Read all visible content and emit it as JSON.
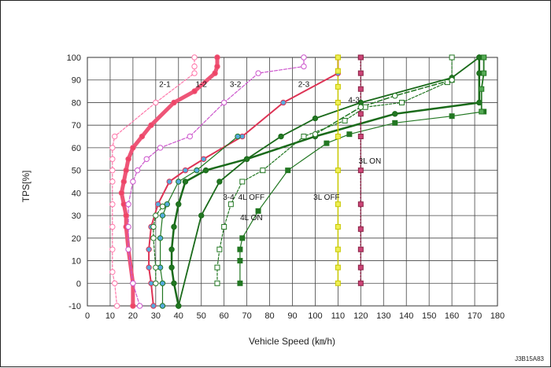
{
  "chart_data": {
    "type": "line",
    "xlabel": "Vehicle Speed (㎞/h)",
    "ylabel": "TPS[%]",
    "xlim": [
      0,
      180
    ],
    "ylim": [
      -10,
      100
    ],
    "xticks": [
      "0",
      "10",
      "20",
      "30",
      "40",
      "50",
      "60",
      "70",
      "80",
      "90",
      "100",
      "110",
      "120",
      "130",
      "140",
      "150",
      "160",
      "170",
      "180"
    ],
    "yticks": [
      "-10",
      "0",
      "10",
      "20",
      "30",
      "40",
      "50",
      "60",
      "70",
      "80",
      "90",
      "100"
    ],
    "grid": true,
    "code_label": "J3B15A83",
    "annotations": [
      {
        "text": "2-1",
        "x": 34,
        "y": 87
      },
      {
        "text": "1-2",
        "x": 50,
        "y": 87
      },
      {
        "text": "3-2",
        "x": 65,
        "y": 87
      },
      {
        "text": "2-3",
        "x": 95,
        "y": 87
      },
      {
        "text": "4-3",
        "x": 117,
        "y": 80
      },
      {
        "text": "3-4",
        "x": 62,
        "y": 37
      },
      {
        "text": "4L OFF",
        "x": 72,
        "y": 37
      },
      {
        "text": "4L ON",
        "x": 72,
        "y": 28
      },
      {
        "text": "3L OFF",
        "x": 105,
        "y": 37
      },
      {
        "text": "3L ON",
        "x": 124,
        "y": 53
      }
    ],
    "series": [
      {
        "color": "#ff77aa",
        "marker_fill": "#ffffff",
        "width": 1.2,
        "dash": "3,2",
        "marker": "circle",
        "x": [
          13,
          12,
          11,
          11,
          11,
          11,
          11,
          11,
          11,
          11,
          12,
          30,
          47,
          47,
          47
        ],
        "y": [
          -10,
          0,
          5,
          15,
          25,
          35,
          45,
          50,
          55,
          60,
          65,
          80,
          93,
          96,
          100
        ]
      },
      {
        "color": "#ee5577",
        "marker_fill": "#ee4466",
        "width": 5,
        "dash": "",
        "marker": "circle",
        "x": [
          20,
          20,
          18,
          17,
          17,
          16,
          15,
          16,
          17,
          18,
          20,
          24,
          28,
          38,
          47,
          56,
          57,
          57
        ],
        "y": [
          -10,
          0,
          15,
          25,
          30,
          35,
          40,
          45,
          50,
          55,
          60,
          65,
          70,
          80,
          85,
          93,
          96,
          100
        ]
      },
      {
        "color": "#cc55cc",
        "marker_fill": "#ffffff",
        "width": 1.2,
        "dash": "4,2",
        "marker": "circle",
        "x": [
          23,
          20,
          18,
          18,
          18,
          20,
          22,
          26,
          32,
          45,
          60,
          75,
          95,
          95
        ],
        "y": [
          -10,
          0,
          15,
          25,
          35,
          45,
          50,
          55,
          60,
          65,
          80,
          93,
          96,
          100
        ]
      },
      {
        "color": "#dd3355",
        "marker_fill": "#55aadd",
        "width": 2,
        "dash": "",
        "marker": "circle",
        "x": [
          29,
          28,
          27,
          27,
          28,
          31,
          36,
          43,
          51,
          68,
          86,
          110,
          110
        ],
        "y": [
          -10,
          0,
          7,
          15,
          25,
          35,
          45,
          50,
          55,
          65,
          80,
          93,
          100
        ]
      },
      {
        "color": "#227722",
        "marker_fill": "#55aadd",
        "width": 1.2,
        "dash": "",
        "marker": "circle",
        "x": [
          33,
          33,
          32,
          32,
          33,
          35,
          40,
          48,
          66
        ],
        "y": [
          -10,
          0,
          7,
          20,
          30,
          35,
          45,
          50,
          65
        ]
      },
      {
        "color": "#227722",
        "marker_fill": "#ffffff",
        "width": 1.2,
        "dash": "3,2",
        "marker": "circle",
        "x": [
          30,
          30,
          29,
          29,
          30,
          33
        ],
        "y": [
          0,
          7,
          20,
          25,
          30,
          34
        ]
      },
      {
        "color": "#1a6a1a",
        "marker_fill": "#227722",
        "width": 2.5,
        "dash": "",
        "marker": "circle",
        "x": [
          40,
          38,
          37,
          37,
          38,
          40,
          43,
          52,
          70,
          100,
          135,
          172,
          172,
          172
        ],
        "y": [
          -10,
          0,
          7,
          15,
          25,
          35,
          45,
          50,
          55,
          65,
          75,
          80,
          93,
          100
        ]
      },
      {
        "color": "#1a6a1a",
        "marker_fill": "#227722",
        "width": 1.8,
        "dash": "",
        "marker": "circle",
        "x": [
          40,
          50,
          58,
          70,
          85,
          100,
          120,
          160,
          172
        ],
        "y": [
          -10,
          30,
          45,
          55,
          65,
          73,
          80,
          91,
          100
        ]
      },
      {
        "color": "#227722",
        "marker_fill": "#ffffff",
        "width": 1.2,
        "dash": "3,2",
        "marker": "square",
        "x": [
          57,
          57,
          58,
          60,
          63,
          68,
          77,
          95,
          113,
          122,
          138,
          158,
          160,
          160
        ],
        "y": [
          0,
          7,
          15,
          25,
          35,
          45,
          50,
          65,
          72,
          78,
          80,
          89,
          90,
          100
        ]
      },
      {
        "color": "#227722",
        "marker_fill": "#227722",
        "width": 1.2,
        "dash": "",
        "marker": "square",
        "x": [
          67,
          67,
          67,
          68,
          75,
          88,
          105,
          115,
          135,
          160,
          174
        ],
        "y": [
          0,
          10,
          15,
          20,
          32,
          50,
          62,
          66,
          71,
          74,
          76
        ]
      },
      {
        "color": "#227722",
        "marker_fill": "#ffffff",
        "width": 1.5,
        "dash": "6,3",
        "marker": "circle",
        "x": [
          100,
          120,
          135,
          160
        ],
        "y": [
          66,
          78,
          83,
          90
        ]
      },
      {
        "color": "#227722",
        "marker_fill": "#55aa55",
        "width": 1.8,
        "dash": "",
        "marker": "square",
        "x": [
          173,
          173,
          174,
          174,
          174
        ],
        "y": [
          76,
          86,
          93,
          100,
          100
        ]
      },
      {
        "color": "#c8c800",
        "marker_fill": "#eeee55",
        "width": 1.5,
        "dash": "",
        "marker": "square",
        "x": [
          110,
          110,
          110,
          110,
          110,
          110,
          110,
          110,
          110,
          110,
          110,
          110
        ],
        "y": [
          0,
          7,
          15,
          25,
          35,
          50,
          65,
          80,
          87,
          94,
          100,
          100
        ]
      },
      {
        "color": "#882244",
        "marker_fill": "#cc4477",
        "width": 1.5,
        "dash": "2,2",
        "marker": "square",
        "x": [
          120,
          120,
          120,
          120,
          120,
          120,
          120,
          120,
          120,
          120,
          120,
          120
        ],
        "y": [
          0,
          7,
          15,
          24,
          35,
          50,
          65,
          75,
          86,
          93,
          100,
          100
        ]
      }
    ]
  }
}
